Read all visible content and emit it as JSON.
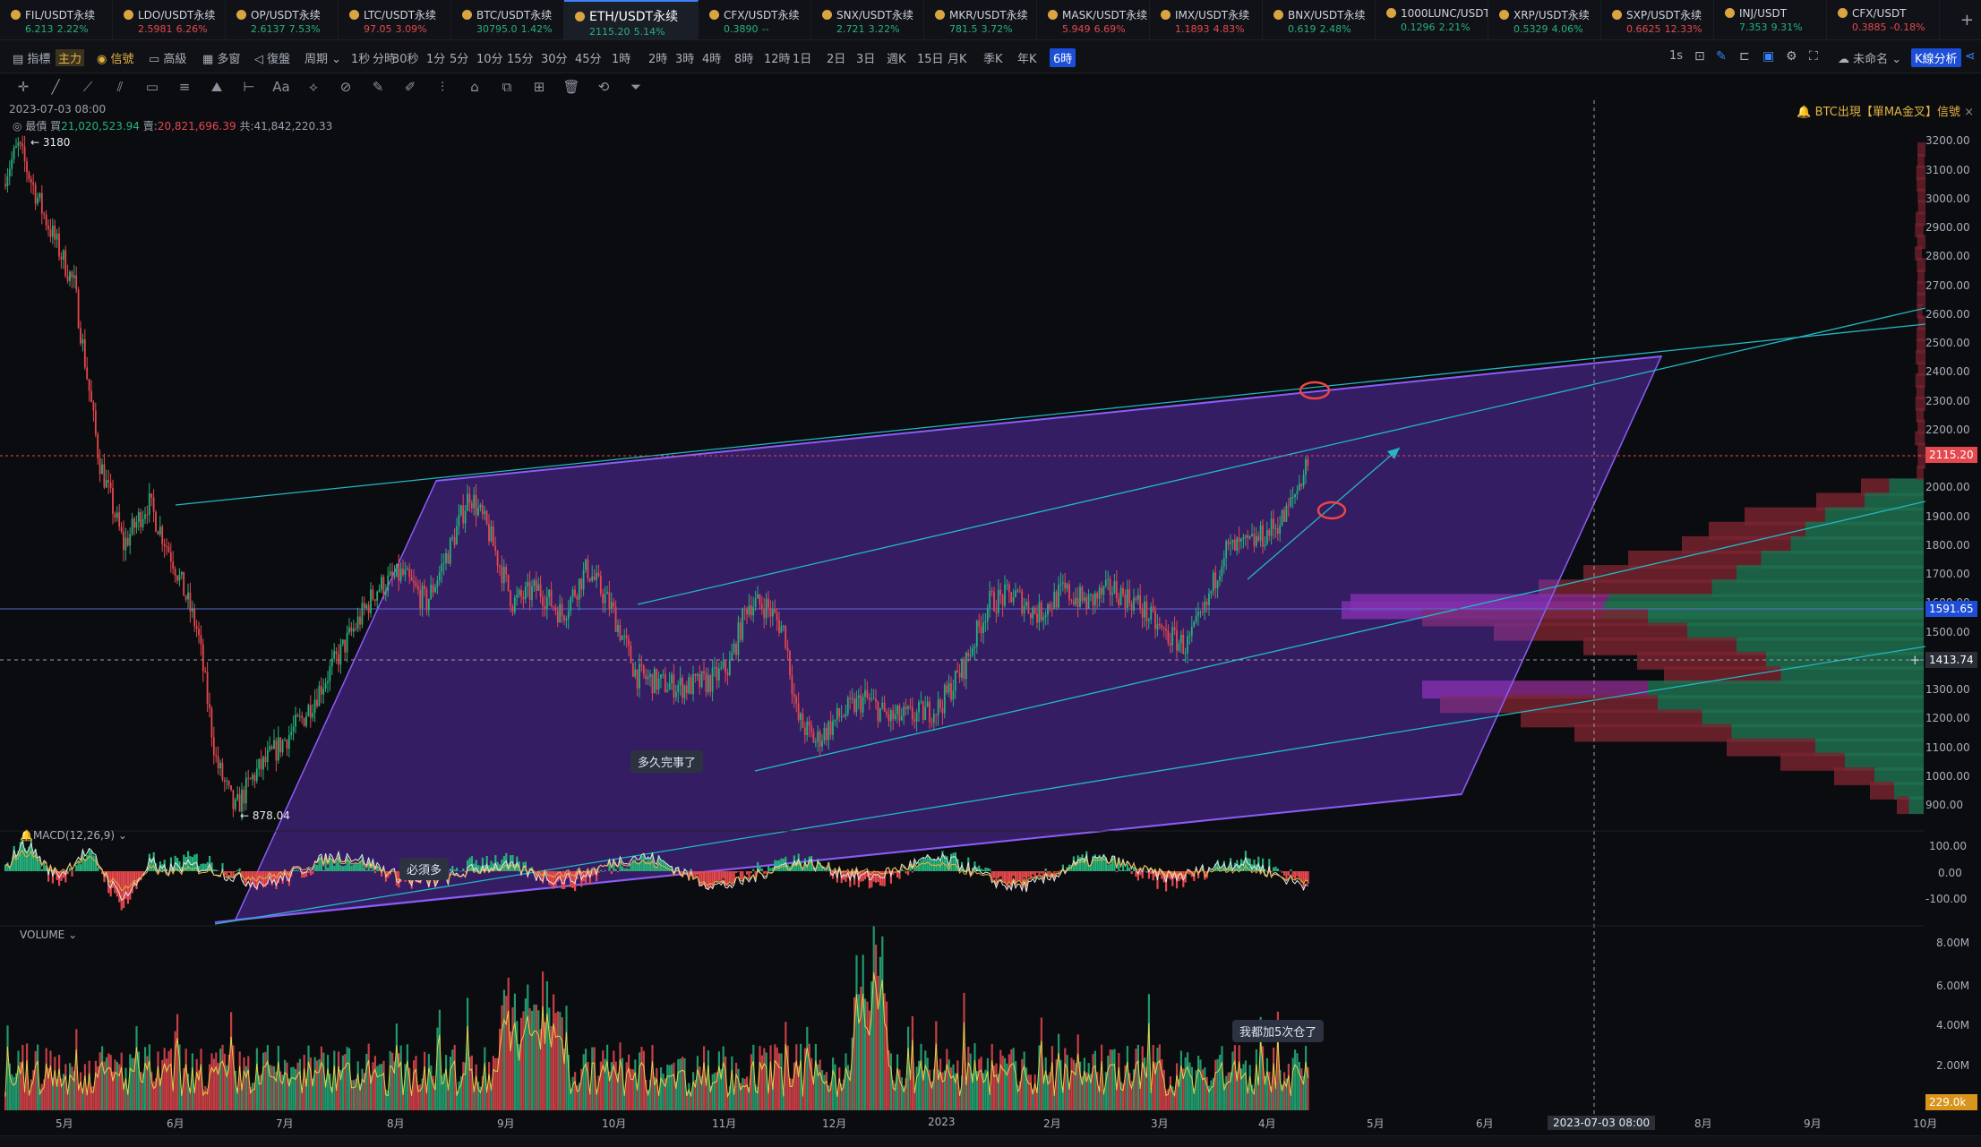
{
  "tickers": [
    {
      "sym": "FIL/USDT永续",
      "price": "6.213",
      "chg": "2.22%",
      "dir": "up"
    },
    {
      "sym": "LDO/USDT永续",
      "price": "2.5981",
      "chg": "6.26%",
      "dir": "dn"
    },
    {
      "sym": "OP/USDT永续",
      "price": "2.6137",
      "chg": "7.53%",
      "dir": "up"
    },
    {
      "sym": "LTC/USDT永续",
      "price": "97.05",
      "chg": "3.09%",
      "dir": "dn"
    },
    {
      "sym": "BTC/USDT永续",
      "price": "30795.0",
      "chg": "1.42%",
      "dir": "up"
    },
    {
      "sym": "ETH/USDT永续",
      "price": "2115.20",
      "chg": "5.14%",
      "dir": "up",
      "active": true
    },
    {
      "sym": "CFX/USDT永续",
      "price": "0.3890",
      "chg": "--",
      "dir": "up"
    },
    {
      "sym": "SNX/USDT永续",
      "price": "2.721",
      "chg": "3.22%",
      "dir": "up"
    },
    {
      "sym": "MKR/USDT永续",
      "price": "781.5",
      "chg": "3.72%",
      "dir": "up"
    },
    {
      "sym": "MASK/USDT永续",
      "price": "5.949",
      "chg": "6.69%",
      "dir": "dn"
    },
    {
      "sym": "IMX/USDT永续",
      "price": "1.1893",
      "chg": "4.83%",
      "dir": "dn"
    },
    {
      "sym": "BNX/USDT永续",
      "price": "0.619",
      "chg": "2.48%",
      "dir": "up"
    },
    {
      "sym": "1000LUNC/USDT",
      "price": "0.1296",
      "chg": "2.21%",
      "dir": "up"
    },
    {
      "sym": "XRP/USDT永续",
      "price": "0.5329",
      "chg": "4.06%",
      "dir": "up"
    },
    {
      "sym": "SXP/USDT永续",
      "price": "0.6625",
      "chg": "12.33%",
      "dir": "dn"
    },
    {
      "sym": "INJ/USDT",
      "price": "7.353",
      "chg": "9.31%",
      "dir": "up"
    },
    {
      "sym": "CFX/USDT",
      "price": "0.3885",
      "chg": "-0.18%",
      "dir": "dn"
    }
  ],
  "toolbar": {
    "indicators": "指標",
    "main_badge": "主力",
    "signal": "信號",
    "advanced": "高級",
    "multi": "多窗",
    "replay": "復盤",
    "period": "周期",
    "intervals": [
      "1秒",
      "分時",
      "30秒",
      "1分",
      "5分",
      "10分",
      "15分",
      "30分",
      "45分",
      "1時",
      "2時",
      "3時",
      "4時",
      "8時",
      "12時",
      "1日",
      "2日",
      "3日",
      "週K",
      "15日",
      "月K",
      "季K",
      "年K",
      "6時"
    ],
    "selected_interval": "6時",
    "right_interval": "1s",
    "layout_name": "未命名",
    "analysis_button": "K線分析"
  },
  "drawing_tools": [
    "crosshair-icon",
    "trendline-icon",
    "ray-icon",
    "parallel-channel-icon",
    "rectangle-icon",
    "fib-icon",
    "pattern-icon",
    "measure-icon",
    "text-icon",
    "brush-icon",
    "highlighter-icon",
    "pen-icon",
    "eraser-icon",
    "ruler-icon",
    "lock-icon",
    "copy-icon",
    "chart-icon",
    "trash-icon",
    "magnet-icon",
    "filter-icon"
  ],
  "info": {
    "timestamp": "2023-07-03 08:00",
    "orders_label": "最債 買",
    "buy": "21,020,523.94",
    "sell_label": "賣:",
    "sell": "20,821,696.39",
    "total_label": "共:",
    "total": "41,842,220.33",
    "alert": "BTC出現【單MA金叉】信號"
  },
  "chart_data": {
    "type": "candlestick",
    "symbol": "ETH/USDT永续",
    "interval": "6時",
    "y_ticks": [
      3200,
      3100,
      3000,
      2900,
      2800,
      2700,
      2600,
      2500,
      2400,
      2300,
      2200,
      2100,
      2000,
      1900,
      1800,
      1700,
      1600,
      1500,
      1400,
      1300,
      1200,
      1100,
      1000,
      900
    ],
    "y_tick_labels": [
      "3200.00",
      "3100.00",
      "3000.00",
      "2900.00",
      "2800.00",
      "2700.00",
      "2600.00",
      "2500.00",
      "2400.00",
      "2300.00",
      "2200.00",
      "2100.00",
      "2000.00",
      "1900.00",
      "1800.00",
      "1700.00",
      "1600.00",
      "1500.00",
      "1400.00",
      "1300.00",
      "1200.00",
      "1100.00",
      "1000.00",
      "900.00"
    ],
    "ylim": [
      860,
      3260
    ],
    "x_labels": [
      "5月",
      "6月",
      "7月",
      "8月",
      "9月",
      "10月",
      "11月",
      "12月",
      "2023",
      "2月",
      "3月",
      "4月",
      "5月",
      "6月",
      "7月",
      "8月",
      "9月",
      "10月"
    ],
    "last_price": "2115.20",
    "level_1": "1591.65",
    "level_2": "1413.74",
    "cursor_date": "2023-07-03 08:00",
    "high_label": "3180",
    "low_label": "878.04",
    "price_path": [
      [
        0,
        3050
      ],
      [
        0.3,
        3180
      ],
      [
        0.7,
        2950
      ],
      [
        1.2,
        2700
      ],
      [
        1.6,
        2100
      ],
      [
        2.0,
        1800
      ],
      [
        2.4,
        1950
      ],
      [
        2.8,
        1750
      ],
      [
        3.2,
        1500
      ],
      [
        3.5,
        1050
      ],
      [
        3.8,
        880
      ],
      [
        4.1,
        1000
      ],
      [
        4.5,
        1100
      ],
      [
        4.9,
        1200
      ],
      [
        5.3,
        1350
      ],
      [
        5.7,
        1500
      ],
      [
        6.1,
        1650
      ],
      [
        6.5,
        1700
      ],
      [
        6.9,
        1600
      ],
      [
        7.3,
        1800
      ],
      [
        7.6,
        1980
      ],
      [
        7.9,
        1850
      ],
      [
        8.3,
        1600
      ],
      [
        8.7,
        1650
      ],
      [
        9.1,
        1560
      ],
      [
        9.5,
        1720
      ],
      [
        9.9,
        1580
      ],
      [
        10.3,
        1350
      ],
      [
        10.7,
        1320
      ],
      [
        11.1,
        1310
      ],
      [
        11.5,
        1330
      ],
      [
        11.8,
        1380
      ],
      [
        12.1,
        1600
      ],
      [
        12.4,
        1590
      ],
      [
        12.7,
        1500
      ],
      [
        12.9,
        1200
      ],
      [
        13.2,
        1120
      ],
      [
        13.6,
        1210
      ],
      [
        14.0,
        1270
      ],
      [
        14.4,
        1200
      ],
      [
        14.8,
        1210
      ],
      [
        15.2,
        1240
      ],
      [
        15.6,
        1380
      ],
      [
        16.0,
        1600
      ],
      [
        16.4,
        1630
      ],
      [
        16.8,
        1560
      ],
      [
        17.2,
        1640
      ],
      [
        17.6,
        1600
      ],
      [
        18.0,
        1650
      ],
      [
        18.4,
        1600
      ],
      [
        18.8,
        1500
      ],
      [
        19.2,
        1450
      ],
      [
        19.5,
        1570
      ],
      [
        19.8,
        1780
      ],
      [
        20.2,
        1800
      ],
      [
        20.5,
        1840
      ],
      [
        20.8,
        1900
      ],
      [
        21.0,
        2000
      ],
      [
        21.2,
        2115
      ]
    ],
    "volume_axis": [
      "8.00M",
      "6.00M",
      "4.00M",
      "2.00M"
    ],
    "volume_last": "229.0k",
    "macd_label": "MACD(12,26,9)",
    "macd_axis": [
      "100.00",
      "0.00",
      "-100.00"
    ],
    "volume_label": "VOLUME"
  },
  "annotations": {
    "note1": "多久完事了",
    "note2": "必須多",
    "note3": "我都加5次仓了"
  },
  "colors": {
    "up": "#26b07a",
    "down": "#e5484d",
    "channel": "#7c3aed",
    "trend": "#22b8c4",
    "accent": "#3b82f6"
  }
}
